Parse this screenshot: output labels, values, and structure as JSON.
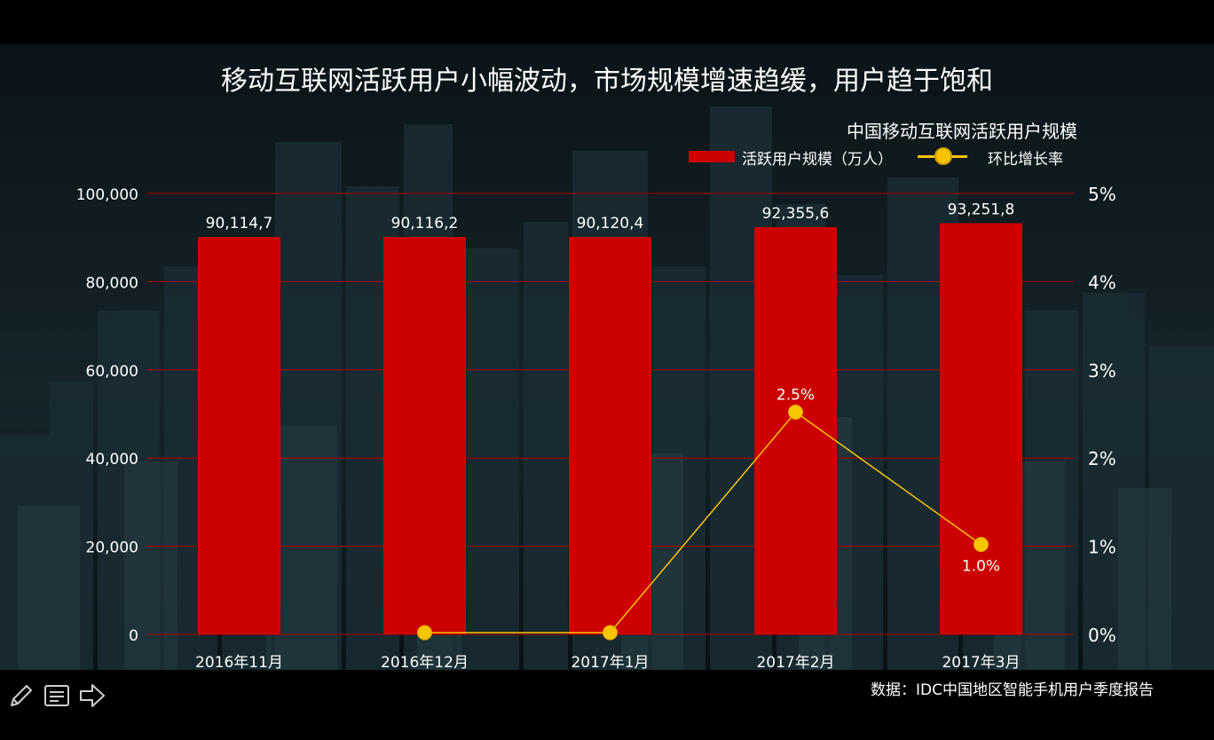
{
  "title": "移动互联网活跃用户小幅波动，市场规模增速趋缓，用户趋于饱和",
  "legend": {
    "title": "中国移动互联网活跃用户规模",
    "bar_label": "活跃用户规模（万人）",
    "line_label": "环比增长率"
  },
  "source": "数据：IDC中国地区智能手机用户季度报告",
  "colors": {
    "bar": "#cc0000",
    "line": "#f7c400",
    "gridline": "#b20000",
    "background": "#000000"
  },
  "toolbar": {
    "icons": [
      "pencil-icon",
      "notes-icon",
      "arrow-right-icon"
    ]
  },
  "chart_data": {
    "type": "bar",
    "categories": [
      "2016年11月",
      "2016年12月",
      "2017年1月",
      "2017年2月",
      "2017年3月"
    ],
    "series": [
      {
        "name": "活跃用户规模（万人）",
        "type": "bar",
        "axis": "left",
        "values": [
          90114.7,
          90116.2,
          90120.4,
          92355.6,
          93251.8
        ],
        "value_labels": [
          "90,114,7",
          "90,116,2",
          "90,120,4",
          "92,355,6",
          "93,251,8"
        ]
      },
      {
        "name": "环比增长率",
        "type": "line",
        "axis": "right",
        "values": [
          null,
          0.0,
          0.0,
          2.5,
          1.0
        ],
        "value_labels": [
          null,
          null,
          null,
          "2.5%",
          "1.0%"
        ]
      }
    ],
    "y_left": {
      "lim": [
        0,
        100000
      ],
      "ticks": [
        0,
        20000,
        40000,
        60000,
        80000,
        100000
      ],
      "tick_labels": [
        "0",
        "20,000",
        "40,000",
        "60,000",
        "80,000",
        "100,000"
      ]
    },
    "y_right": {
      "lim": [
        0,
        5
      ],
      "ticks": [
        0,
        1,
        2,
        3,
        4,
        5
      ],
      "tick_labels": [
        "0%",
        "1%",
        "2%",
        "3%",
        "4%",
        "5%"
      ]
    },
    "grid": true,
    "legend_position": "top-right"
  }
}
